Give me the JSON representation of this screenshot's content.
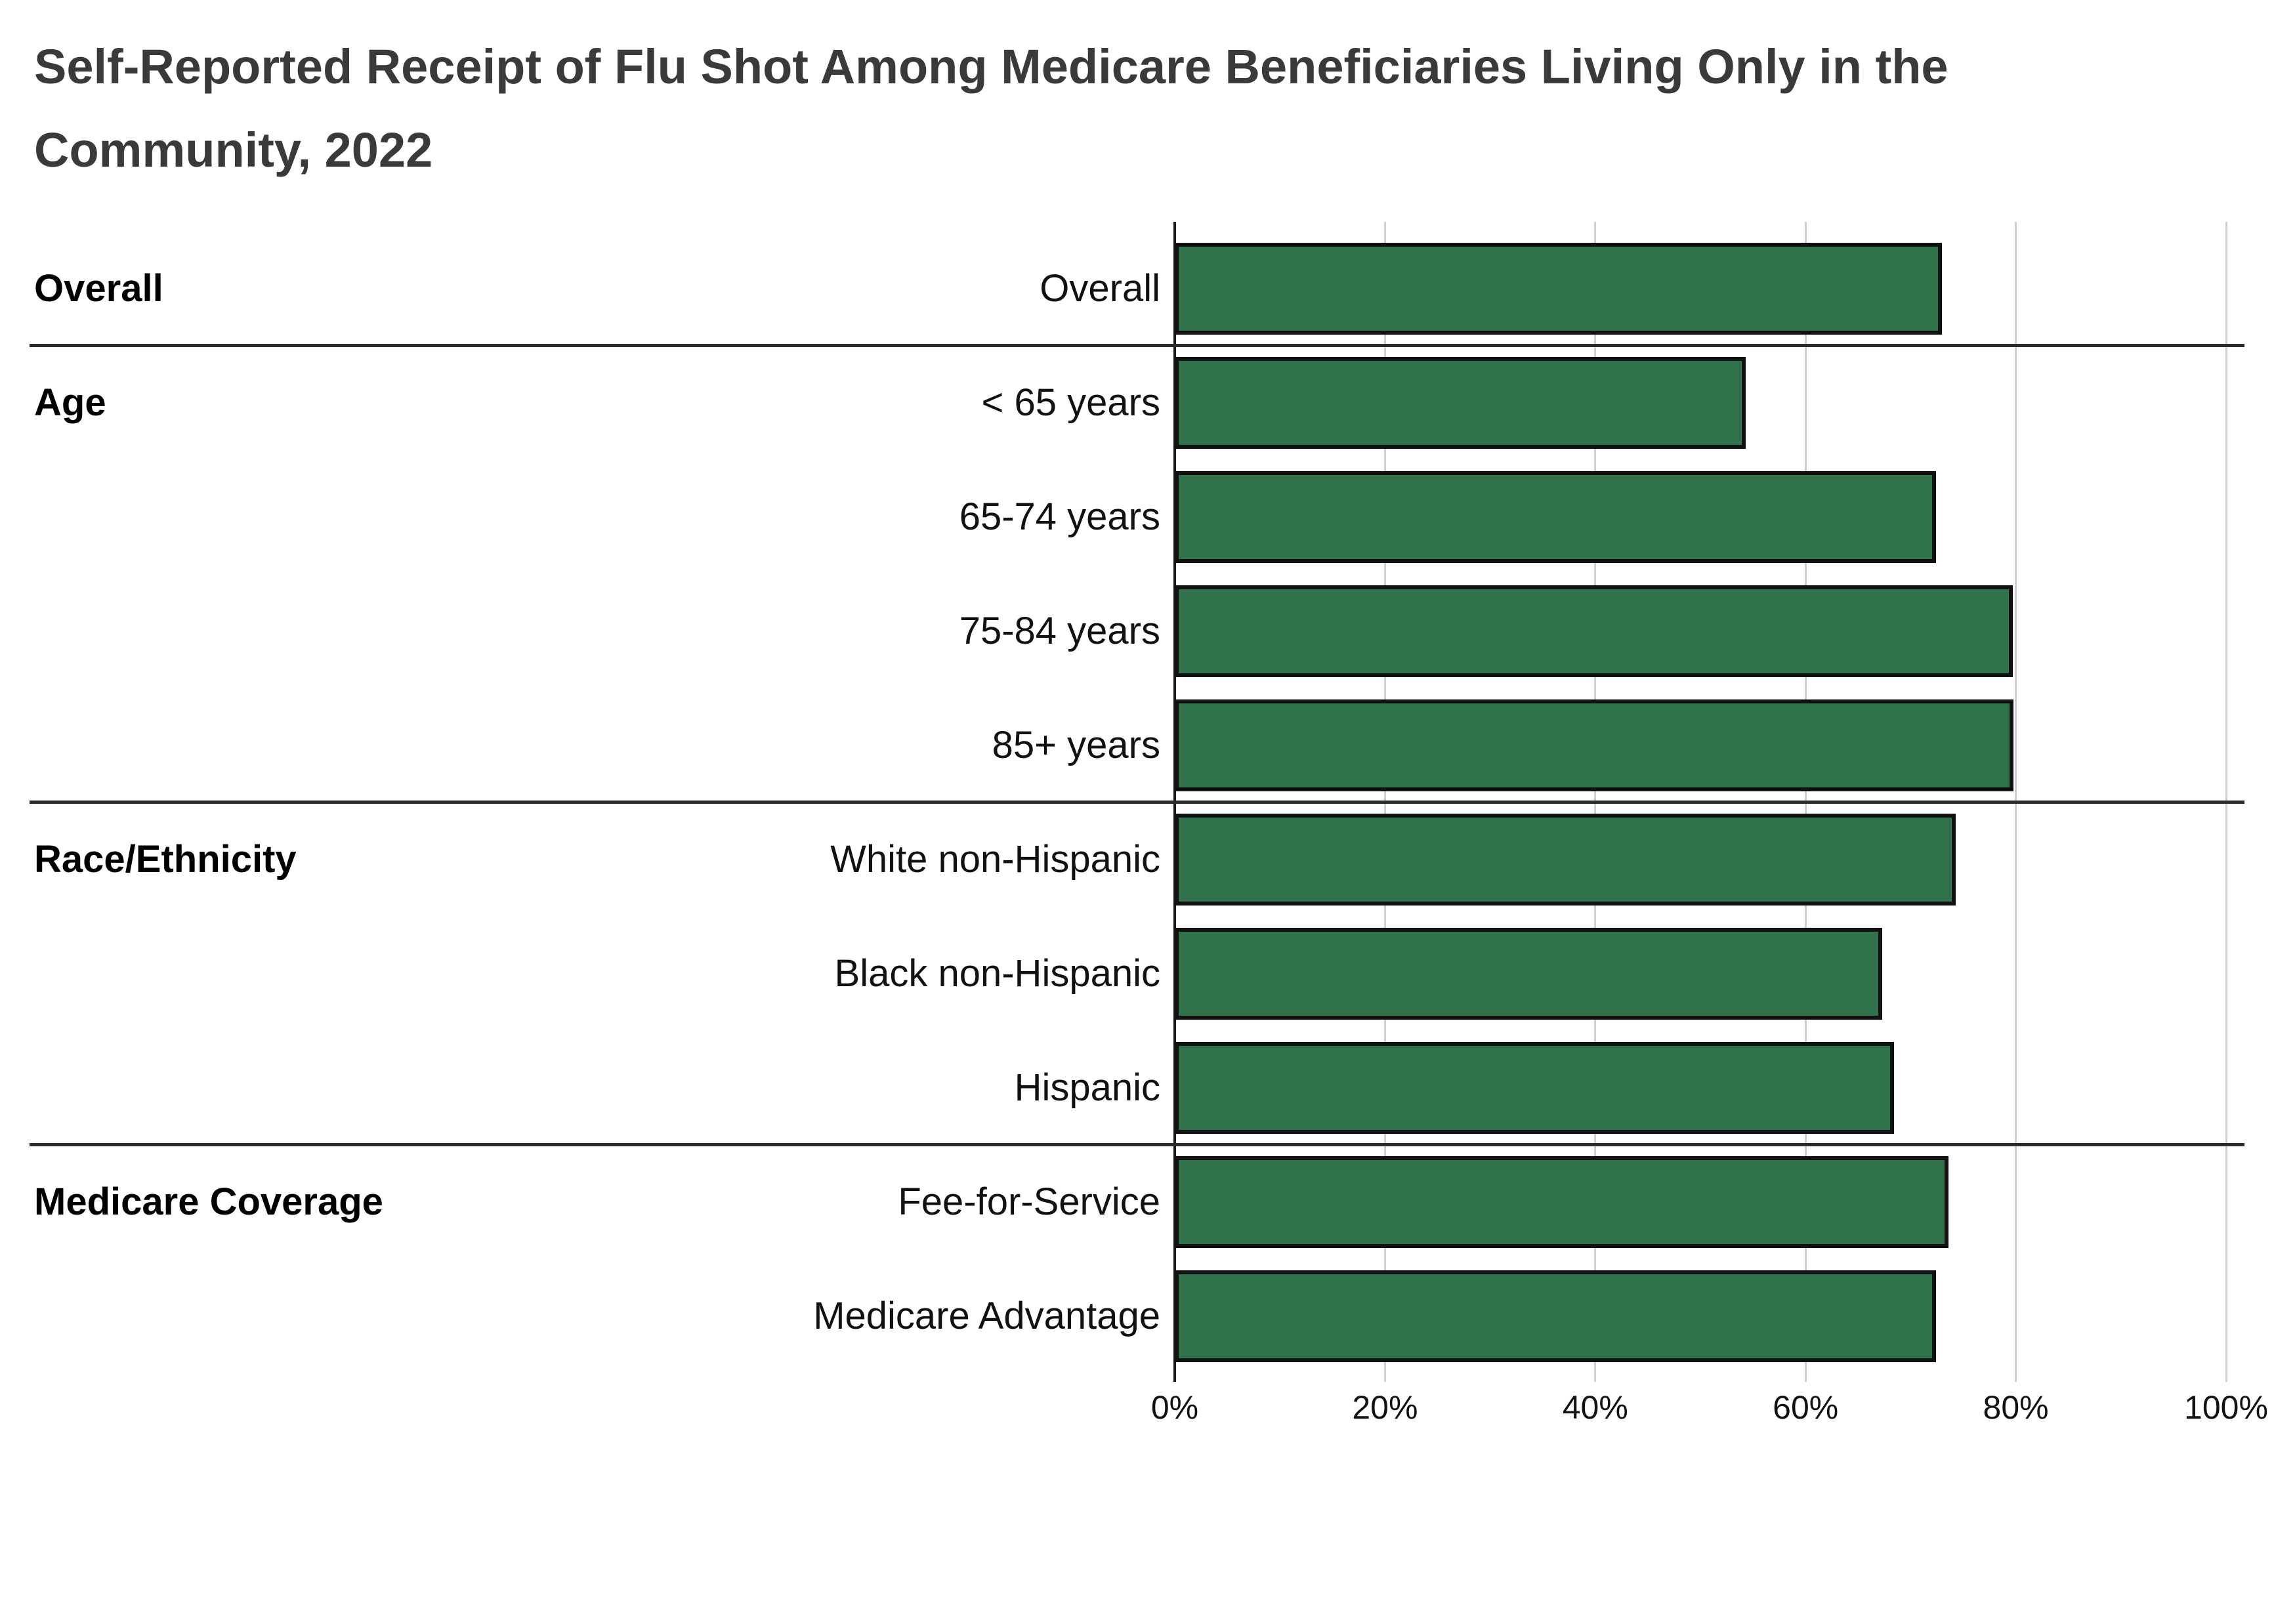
{
  "title": "Self-Reported Receipt of Flu Shot Among Medicare Beneficiaries Living Only in the\nCommunity, 2022",
  "chart_data": {
    "type": "bar",
    "orientation": "horizontal",
    "unit": "%",
    "title": "Self-Reported Receipt of Flu Shot Among Medicare Beneficiaries Living Only in the Community, 2022",
    "xlabel": "",
    "ylabel": "",
    "xlim": [
      0,
      100
    ],
    "x_tick_values": [
      0,
      20,
      40,
      60,
      80,
      100
    ],
    "x_tick_labels": [
      "0%",
      "20%",
      "40%",
      "60%",
      "80%",
      "100%"
    ],
    "grid": true,
    "legend": "none",
    "bar_color": "#2F7148",
    "bar_border_color": "#111111",
    "gridline_color": "#cfcfcf",
    "axis_color": "#1a1a1a",
    "separator_color": "#2b2b2b",
    "groups": [
      {
        "label": "Overall",
        "rows": [
          {
            "label": "Overall",
            "value": 73.0
          }
        ]
      },
      {
        "label": "Age",
        "rows": [
          {
            "label": "< 65 years",
            "value": 54.3
          },
          {
            "label": "65-74 years",
            "value": 72.4
          },
          {
            "label": "75-84 years",
            "value": 79.7
          },
          {
            "label": "85+ years",
            "value": 79.8
          }
        ]
      },
      {
        "label": "Race/Ethnicity",
        "rows": [
          {
            "label": "White non-Hispanic",
            "value": 74.3
          },
          {
            "label": "Black non-Hispanic",
            "value": 67.3
          },
          {
            "label": "Hispanic",
            "value": 68.4
          }
        ]
      },
      {
        "label": "Medicare Coverage",
        "rows": [
          {
            "label": "Fee-for-Service",
            "value": 73.6
          },
          {
            "label": "Medicare Advantage",
            "value": 72.4
          }
        ]
      }
    ]
  }
}
